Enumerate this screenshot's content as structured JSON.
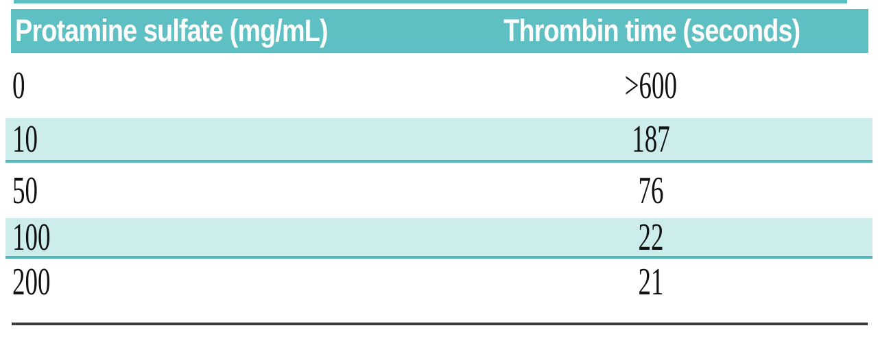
{
  "table": {
    "columns": [
      {
        "label": "Protamine sulfate (mg/mL)"
      },
      {
        "label": "Thrombin time (seconds)"
      }
    ],
    "rows": [
      {
        "protamine": "0",
        "thrombin": ">600"
      },
      {
        "protamine": "10",
        "thrombin": "187"
      },
      {
        "protamine": "50",
        "thrombin": "76"
      },
      {
        "protamine": "100",
        "thrombin": "22"
      },
      {
        "protamine": "200",
        "thrombin": "21"
      }
    ]
  },
  "colors": {
    "header_bg": "#5ec0c2",
    "header_text": "#ffffff",
    "row_alt_bg": "#cdecec",
    "row_alt_border": "#55b7b9",
    "bottom_rule": "#3a3a3a"
  },
  "chart_data": {
    "type": "table",
    "title": "",
    "columns": [
      "Protamine sulfate (mg/mL)",
      "Thrombin time (seconds)"
    ],
    "rows": [
      [
        "0",
        ">600"
      ],
      [
        "10",
        "187"
      ],
      [
        "50",
        "76"
      ],
      [
        "100",
        "22"
      ],
      [
        "200",
        "21"
      ]
    ]
  }
}
